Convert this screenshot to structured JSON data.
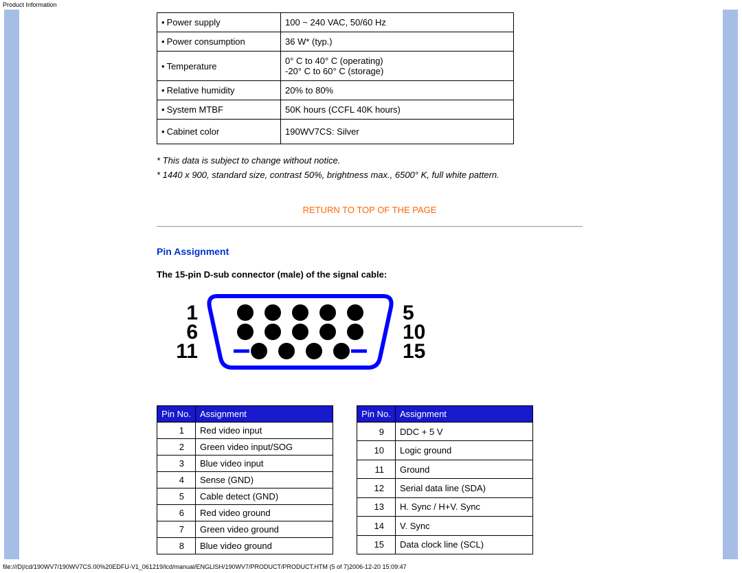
{
  "header_text": "Product Information",
  "spec_table": {
    "rows": [
      {
        "label": "Power supply",
        "value": "100 ~ 240 VAC, 50/60 Hz"
      },
      {
        "label": "Power consumption",
        "value": "36 W* (typ.)"
      },
      {
        "label": "Temperature",
        "value": "0° C to 40° C (operating)\n-20° C to 60° C (storage)"
      },
      {
        "label": "Relative humidity",
        "value": "20% to 80%"
      },
      {
        "label": "System MTBF",
        "value": "50K hours (CCFL 40K hours)"
      },
      {
        "label": "Cabinet color",
        "value": "190WV7CS: Silver"
      }
    ]
  },
  "notes": {
    "line1": "* This data is subject to change without notice.",
    "line2": "* 1440 x 900, standard size, contrast 50%, brightness max., 6500° K, full white pattern."
  },
  "return_link": "RETURN TO TOP OF THE PAGE",
  "section_title": "Pin Assignment",
  "subheading": "The 15-pin D-sub connector (male) of the signal cable:",
  "connector": {
    "left_labels": [
      "1",
      "6",
      "11"
    ],
    "right_labels": [
      "5",
      "10",
      "15"
    ],
    "outline_color": "#0000ff",
    "pin_fill": "#000000",
    "label_color": "#000000",
    "label_fontsize": 30
  },
  "pin_tables": {
    "header_pin": "Pin No.",
    "header_assign": "Assignment",
    "header_bg": "#1818cc",
    "header_fg": "#ffffff",
    "left": [
      {
        "pin": "1",
        "assign": "Red video input"
      },
      {
        "pin": "2",
        "assign": "Green video input/SOG"
      },
      {
        "pin": "3",
        "assign": "Blue video input"
      },
      {
        "pin": "4",
        "assign": "Sense (GND)"
      },
      {
        "pin": "5",
        "assign": "Cable detect (GND)"
      },
      {
        "pin": "6",
        "assign": "Red video ground"
      },
      {
        "pin": "7",
        "assign": "Green video ground"
      },
      {
        "pin": "8",
        "assign": "Blue video ground"
      }
    ],
    "right": [
      {
        "pin": "9",
        "assign": "DDC + 5 V"
      },
      {
        "pin": "10",
        "assign": "Logic ground"
      },
      {
        "pin": "11",
        "assign": "Ground"
      },
      {
        "pin": "12",
        "assign": "Serial data line (SDA)"
      },
      {
        "pin": "13",
        "assign": "H. Sync / H+V. Sync"
      },
      {
        "pin": "14",
        "assign": "V. Sync"
      },
      {
        "pin": "15",
        "assign": "Data clock line (SCL)"
      }
    ]
  },
  "footer_text": "file:///D|/cd/190WV7/190WV7CS.00%20EDFU-V1_061219/lcd/manual/ENGLISH/190WV7/PRODUCT/PRODUCT.HTM (5 of 7)2006-12-20 15:09:47",
  "colors": {
    "sidebar": "#a6bde6",
    "link": "#ff6600",
    "title": "#0033cc"
  }
}
